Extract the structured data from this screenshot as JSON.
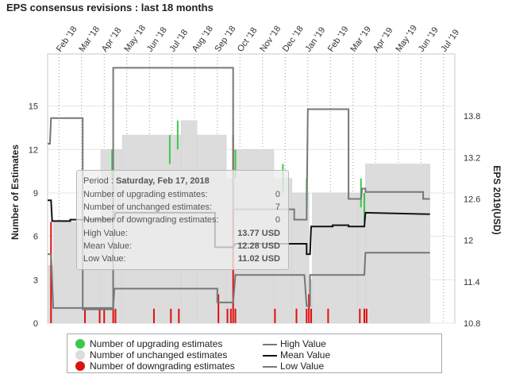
{
  "title": "EPS consensus revisions : last 18 months",
  "legend": {
    "up": "Number of upgrading estimates",
    "unch": "Number of unchanged estimates",
    "down": "Number of downgrading estimates",
    "high": "High Value",
    "mean": "Mean Value",
    "low": "Low Value"
  },
  "tooltip": {
    "period_label": "Period :",
    "period_value": "Saturday, Feb 17, 2018",
    "rows": [
      {
        "label": "Number of upgrading estimates:",
        "value": "0"
      },
      {
        "label": "Number of unchanged estimates:",
        "value": "7"
      },
      {
        "label": "Number of downgrading estimates:",
        "value": "0"
      },
      {
        "label": "High Value:",
        "value": "13.77 USD"
      },
      {
        "label": "Mean Value:",
        "value": "12.28 USD"
      },
      {
        "label": "Low Value:",
        "value": "11.02 USD"
      }
    ]
  },
  "colors": {
    "up": "#3cc84a",
    "unch": "#dcdcdc",
    "down": "#e01010",
    "high": "#777777",
    "mean": "#111111",
    "low": "#777777"
  },
  "chart_data": {
    "type": "bar+line",
    "title": "EPS consensus revisions : last 18 months",
    "ylabel_left": "Number of Estimates",
    "ylabel_right": "EPS 2019(USD)",
    "y_left_ticks": [
      0,
      3,
      6,
      9,
      12,
      15
    ],
    "y_left_lim": [
      0,
      18.6
    ],
    "y_right_ticks": [
      "10.8",
      "11.4",
      "12",
      "12.6",
      "13.2",
      "13.8"
    ],
    "y_right_lim": [
      10.8,
      14.7
    ],
    "x_ticks": [
      "Feb '18",
      "Mar '18",
      "Apr '18",
      "May '18",
      "Jun '18",
      "Jul '18",
      "Aug '18",
      "Sep '18",
      "Oct '18",
      "Nov '18",
      "Dec '18",
      "Jan '19",
      "Feb '19",
      "Mar '19",
      "Apr '19",
      "May '19",
      "Jun '19",
      "Jul '19"
    ],
    "x_lim": [
      0,
      18
    ],
    "unchanged_steps": [
      {
        "x0": 0.0,
        "x1": 0.25,
        "y": 4
      },
      {
        "x0": 0.25,
        "x1": 2.35,
        "y": 7
      },
      {
        "x0": 2.35,
        "x1": 2.85,
        "y": 12
      },
      {
        "x0": 2.85,
        "x1": 3.3,
        "y": 12
      },
      {
        "x0": 3.3,
        "x1": 5.9,
        "y": 13
      },
      {
        "x0": 5.9,
        "x1": 6.6,
        "y": 14
      },
      {
        "x0": 6.6,
        "x1": 7.9,
        "y": 13
      },
      {
        "x0": 7.9,
        "x1": 8.25,
        "y": 10
      },
      {
        "x0": 8.25,
        "x1": 10.0,
        "y": 12
      },
      {
        "x0": 10.0,
        "x1": 10.8,
        "y": 10
      },
      {
        "x0": 10.8,
        "x1": 11.55,
        "y": 9
      },
      {
        "x0": 11.55,
        "x1": 11.7,
        "y": 3
      },
      {
        "x0": 11.7,
        "x1": 13.7,
        "y": 9
      },
      {
        "x0": 13.7,
        "x1": 14.05,
        "y": 9
      },
      {
        "x0": 14.05,
        "x1": 16.9,
        "y": 11
      }
    ],
    "upgrading": [
      {
        "x": 2.85,
        "v": 12
      },
      {
        "x": 5.4,
        "v": 13
      },
      {
        "x": 5.75,
        "v": 14
      },
      {
        "x": 8.3,
        "v": 12
      },
      {
        "x": 10.4,
        "v": 11
      },
      {
        "x": 11.45,
        "v": 10
      },
      {
        "x": 13.85,
        "v": 10
      },
      {
        "x": 14.0,
        "v": 9
      }
    ],
    "downgrading": [
      {
        "x": 0.15,
        "v": 7
      },
      {
        "x": 1.65,
        "v": 1
      },
      {
        "x": 2.3,
        "v": 1
      },
      {
        "x": 2.5,
        "v": 1
      },
      {
        "x": 2.9,
        "v": 1
      },
      {
        "x": 3.0,
        "v": 1
      },
      {
        "x": 4.7,
        "v": 1
      },
      {
        "x": 5.45,
        "v": 1
      },
      {
        "x": 5.8,
        "v": 1
      },
      {
        "x": 7.55,
        "v": 2
      },
      {
        "x": 7.95,
        "v": 1
      },
      {
        "x": 8.1,
        "v": 1
      },
      {
        "x": 8.2,
        "v": 13
      },
      {
        "x": 8.3,
        "v": 1
      },
      {
        "x": 10.05,
        "v": 1
      },
      {
        "x": 11.0,
        "v": 1
      },
      {
        "x": 11.45,
        "v": 1
      },
      {
        "x": 11.55,
        "v": 2
      },
      {
        "x": 11.65,
        "v": 1
      },
      {
        "x": 12.4,
        "v": 1
      },
      {
        "x": 13.8,
        "v": 1
      },
      {
        "x": 14.0,
        "v": 1
      },
      {
        "x": 14.1,
        "v": 1
      }
    ],
    "series": [
      {
        "name": "High Value",
        "points": [
          [
            0.0,
            13.4
          ],
          [
            0.1,
            13.4
          ],
          [
            0.15,
            13.77
          ],
          [
            1.55,
            13.77
          ],
          [
            1.55,
            11.0
          ],
          [
            2.9,
            11.0
          ],
          [
            2.9,
            14.5
          ],
          [
            8.2,
            14.5
          ],
          [
            8.2,
            12.45
          ],
          [
            10.1,
            12.45
          ],
          [
            10.1,
            12.45
          ],
          [
            10.9,
            12.45
          ],
          [
            10.9,
            12.3
          ],
          [
            11.45,
            12.3
          ],
          [
            11.5,
            13.9
          ],
          [
            13.3,
            13.9
          ],
          [
            13.3,
            12.6
          ],
          [
            13.85,
            12.6
          ],
          [
            13.9,
            12.75
          ],
          [
            14.05,
            12.75
          ],
          [
            14.05,
            12.7
          ],
          [
            16.6,
            12.7
          ],
          [
            16.6,
            12.6
          ],
          [
            16.9,
            12.6
          ]
        ]
      },
      {
        "name": "Mean Value",
        "points": [
          [
            0.0,
            12.58
          ],
          [
            0.15,
            12.58
          ],
          [
            0.2,
            12.28
          ],
          [
            1.0,
            12.28
          ],
          [
            1.0,
            12.3
          ],
          [
            2.95,
            12.3
          ],
          [
            3.0,
            12.4
          ],
          [
            7.4,
            12.4
          ],
          [
            7.4,
            11.9
          ],
          [
            8.2,
            11.9
          ],
          [
            8.3,
            11.95
          ],
          [
            10.1,
            11.95
          ],
          [
            10.1,
            11.95
          ],
          [
            11.45,
            11.95
          ],
          [
            11.45,
            11.8
          ],
          [
            11.6,
            11.8
          ],
          [
            11.65,
            12.2
          ],
          [
            12.6,
            12.2
          ],
          [
            12.6,
            12.22
          ],
          [
            13.3,
            12.22
          ],
          [
            13.3,
            12.2
          ],
          [
            14.0,
            12.2
          ],
          [
            14.05,
            12.4
          ],
          [
            16.9,
            12.38
          ]
        ]
      },
      {
        "name": "Low Value",
        "points": [
          [
            0.0,
            11.8
          ],
          [
            0.15,
            11.8
          ],
          [
            0.25,
            11.02
          ],
          [
            2.9,
            11.02
          ],
          [
            2.95,
            11.3
          ],
          [
            7.5,
            11.3
          ],
          [
            7.5,
            11.1
          ],
          [
            8.2,
            11.1
          ],
          [
            8.3,
            11.5
          ],
          [
            10.05,
            11.5
          ],
          [
            10.05,
            11.5
          ],
          [
            11.35,
            11.5
          ],
          [
            11.45,
            11.05
          ],
          [
            11.6,
            11.05
          ],
          [
            11.6,
            11.5
          ],
          [
            14.0,
            11.5
          ],
          [
            14.05,
            11.82
          ],
          [
            16.9,
            11.82
          ]
        ]
      }
    ],
    "grid": true,
    "legend_position": "bottom"
  }
}
